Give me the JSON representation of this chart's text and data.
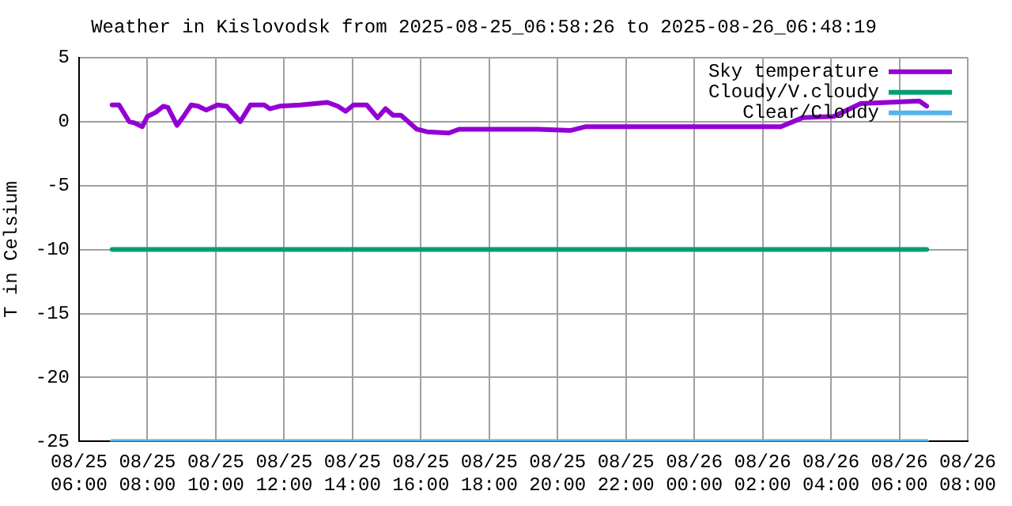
{
  "chart_data": {
    "type": "line",
    "title": "Weather in Kislovodsk from 2025-08-25_06:58:26 to 2025-08-26_06:48:19",
    "ylabel": "T in Celsium",
    "xlim": [
      "2025-08-25T06:00",
      "2025-08-26T08:00"
    ],
    "xticks": [
      {
        "value": "2025-08-25T06:00",
        "label": "08/25 06:00"
      },
      {
        "value": "2025-08-25T08:00",
        "label": "08/25 08:00"
      },
      {
        "value": "2025-08-25T10:00",
        "label": "08/25 10:00"
      },
      {
        "value": "2025-08-25T12:00",
        "label": "08/25 12:00"
      },
      {
        "value": "2025-08-25T14:00",
        "label": "08/25 14:00"
      },
      {
        "value": "2025-08-25T16:00",
        "label": "08/25 16:00"
      },
      {
        "value": "2025-08-25T18:00",
        "label": "08/25 18:00"
      },
      {
        "value": "2025-08-25T20:00",
        "label": "08/25 20:00"
      },
      {
        "value": "2025-08-25T22:00",
        "label": "08/25 22:00"
      },
      {
        "value": "2025-08-26T00:00",
        "label": "08/26 00:00"
      },
      {
        "value": "2025-08-26T02:00",
        "label": "08/26 02:00"
      },
      {
        "value": "2025-08-26T04:00",
        "label": "08/26 04:00"
      },
      {
        "value": "2025-08-26T06:00",
        "label": "08/26 06:00"
      },
      {
        "value": "2025-08-26T08:00",
        "label": "08/26 08:00"
      }
    ],
    "ylim": [
      -25,
      5
    ],
    "yticks": [
      -25,
      -20,
      -15,
      -10,
      -5,
      0,
      5
    ],
    "grid": true,
    "legend": "top right",
    "marker": "none",
    "line_style": "solid",
    "series": [
      {
        "name": "Sky temperature",
        "color": "#9400d3",
        "x": [
          "2025-08-25T06:58",
          "2025-08-25T07:10",
          "2025-08-25T07:28",
          "2025-08-25T07:37",
          "2025-08-25T07:51",
          "2025-08-25T08:00",
          "2025-08-25T08:14",
          "2025-08-25T08:28",
          "2025-08-25T08:36",
          "2025-08-25T08:52",
          "2025-08-25T09:05",
          "2025-08-25T09:17",
          "2025-08-25T09:29",
          "2025-08-25T09:43",
          "2025-08-25T10:03",
          "2025-08-25T10:19",
          "2025-08-25T10:43",
          "2025-08-25T11:01",
          "2025-08-25T11:25",
          "2025-08-25T11:35",
          "2025-08-25T11:52",
          "2025-08-25T12:29",
          "2025-08-25T13:16",
          "2025-08-25T13:34",
          "2025-08-25T13:48",
          "2025-08-25T14:02",
          "2025-08-25T14:25",
          "2025-08-25T14:44",
          "2025-08-25T14:58",
          "2025-08-25T15:11",
          "2025-08-25T15:25",
          "2025-08-25T15:53",
          "2025-08-25T16:11",
          "2025-08-25T16:49",
          "2025-08-25T17:07",
          "2025-08-25T19:26",
          "2025-08-25T20:22",
          "2025-08-25T20:50",
          "2025-08-26T02:32",
          "2025-08-26T03:10",
          "2025-08-26T04:05",
          "2025-08-26T04:52",
          "2025-08-26T06:35",
          "2025-08-26T06:48"
        ],
        "values": [
          1.3,
          1.3,
          0.0,
          -0.1,
          -0.4,
          0.4,
          0.7,
          1.2,
          1.1,
          -0.3,
          0.5,
          1.3,
          1.2,
          0.9,
          1.3,
          1.2,
          0.0,
          1.3,
          1.3,
          1.0,
          1.2,
          1.3,
          1.5,
          1.2,
          0.8,
          1.3,
          1.3,
          0.3,
          1.0,
          0.5,
          0.5,
          -0.6,
          -0.8,
          -0.9,
          -0.6,
          -0.6,
          -0.7,
          -0.4,
          -0.4,
          0.3,
          0.4,
          1.4,
          1.6,
          1.2
        ]
      },
      {
        "name": "Cloudy/V.cloudy",
        "color": "#009e73",
        "x": [
          "2025-08-25T06:58",
          "2025-08-26T06:48"
        ],
        "values": [
          -10,
          -10
        ]
      },
      {
        "name": "Clear/Cloudy",
        "color": "#56b4e9",
        "x": [
          "2025-08-25T06:58",
          "2025-08-26T06:48"
        ],
        "values": [
          -25,
          -25
        ]
      }
    ]
  }
}
